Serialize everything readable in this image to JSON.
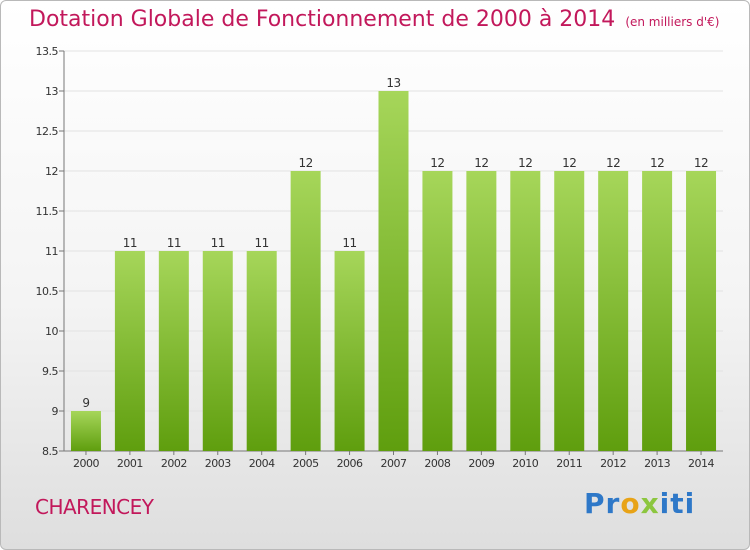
{
  "title": "Dotation Globale de Fonctionnement de 2000 à 2014",
  "unit": "(en milliers d'€)",
  "commune": "CHARENCEY",
  "logo": {
    "p": "Pr",
    "o": "o",
    "x": "x",
    "i": "iti",
    "full": "Proxiti"
  },
  "colors": {
    "bar_top": "#a6d65a",
    "bar_bottom": "#5f9e0e",
    "title": "#c2185b"
  },
  "chart_data": {
    "type": "bar",
    "categories": [
      "2000",
      "2001",
      "2002",
      "2003",
      "2004",
      "2005",
      "2006",
      "2007",
      "2008",
      "2009",
      "2010",
      "2011",
      "2012",
      "2013",
      "2014"
    ],
    "values": [
      9,
      11,
      11,
      11,
      11,
      12,
      11,
      13,
      12,
      12,
      12,
      12,
      12,
      12,
      12
    ],
    "data_labels": [
      "9",
      "11",
      "11",
      "11",
      "11",
      "12",
      "11",
      "13",
      "12",
      "12",
      "12",
      "12",
      "12",
      "12",
      "12"
    ],
    "ylim": [
      8.5,
      13.5
    ],
    "yticks": [
      8.5,
      9,
      9.5,
      10,
      10.5,
      11,
      11.5,
      12,
      12.5,
      13,
      13.5
    ],
    "ytick_labels": [
      "8.5",
      "9",
      "9.5",
      "10",
      "10.5",
      "11",
      "11.5",
      "12",
      "12.5",
      "13",
      "13.5"
    ],
    "grid": true,
    "legend": "none"
  }
}
